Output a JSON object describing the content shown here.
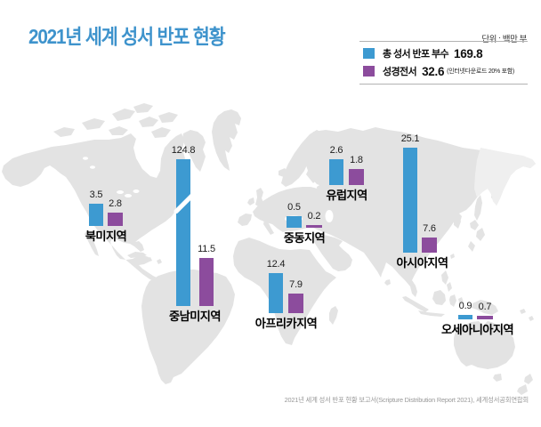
{
  "title": "2021년 세계 성서 반포 현황",
  "unit_label": "단위 : 백만 부",
  "legend": {
    "total": {
      "label": "총 성서 반포 부수",
      "value": "169.8"
    },
    "bible": {
      "label": "성경전서",
      "value": "32.6",
      "note": "(인터넷다운로드 20% 포함)"
    }
  },
  "colors": {
    "total_bar": "#3d9ad1",
    "bible_bar": "#8c4c9d",
    "title": "#3e93cc",
    "map": "#e3e3e3"
  },
  "source": "2021년 세계 성서 반포 현황 보고서(Scripture Distribution Report 2021), 세계성서공회연합회",
  "chart_data": {
    "type": "bar",
    "title": "2021년 세계 성서 반포 현황",
    "unit": "백만 부",
    "legend_position": "top-right",
    "series": [
      {
        "name": "총 성서 반포 부수",
        "world_total": 169.8
      },
      {
        "name": "성경전서",
        "world_total": 32.6,
        "note": "인터넷다운로드 20% 포함"
      }
    ],
    "regions": [
      {
        "name": "북미지역",
        "total": 3.5,
        "bible": 2.8
      },
      {
        "name": "중남미지역",
        "total": 124.8,
        "bible": 11.5
      },
      {
        "name": "아프리카지역",
        "total": 12.4,
        "bible": 7.9
      },
      {
        "name": "중동지역",
        "total": 0.5,
        "bible": 0.2
      },
      {
        "name": "유럽지역",
        "total": 2.6,
        "bible": 1.8
      },
      {
        "name": "아시아지역",
        "total": 25.1,
        "bible": 7.6
      },
      {
        "name": "오세아니아지역",
        "total": 0.9,
        "bible": 0.7
      }
    ]
  }
}
